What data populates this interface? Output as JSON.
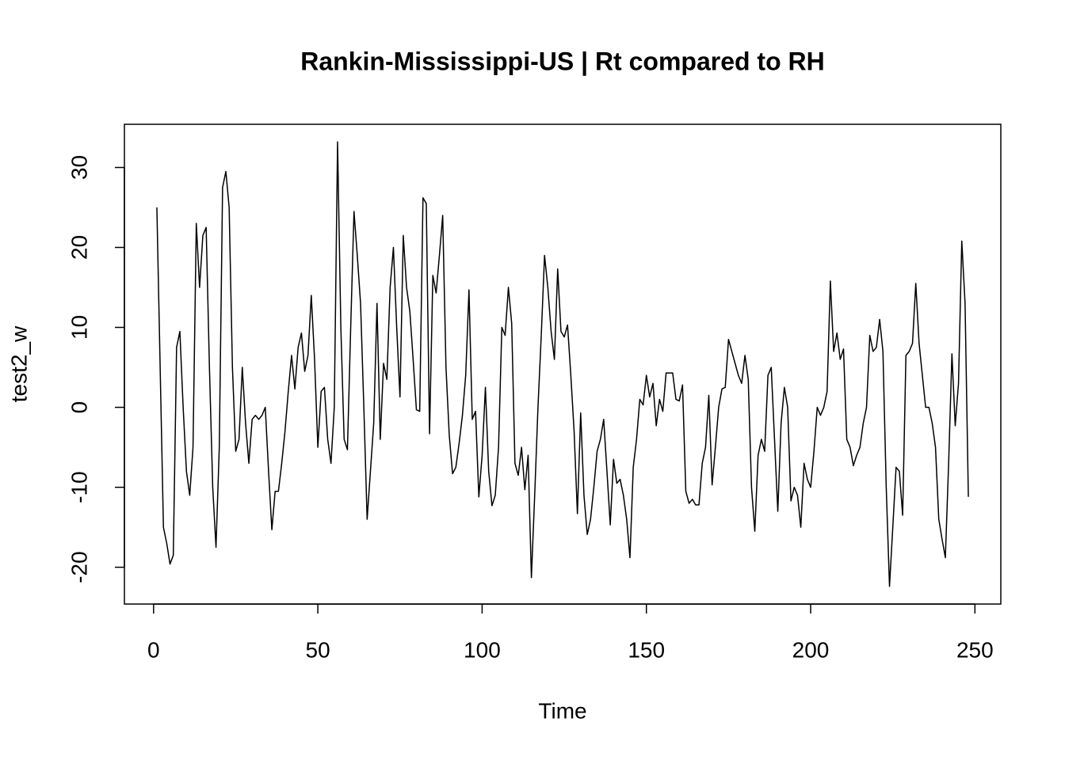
{
  "chart_data": {
    "type": "line",
    "title": "Rankin-Mississippi-US | Rt compared to RH",
    "x_label": "Time",
    "y_label": "test2_w",
    "color": "#000000",
    "x": [
      1,
      2,
      3,
      4,
      5,
      6,
      7,
      8,
      9,
      10,
      11,
      12,
      13,
      14,
      15,
      16,
      17,
      18,
      19,
      20,
      21,
      22,
      23,
      24,
      25,
      26,
      27,
      28,
      29,
      30,
      31,
      32,
      33,
      34,
      35,
      36,
      37,
      38,
      39,
      40,
      41,
      42,
      43,
      44,
      45,
      46,
      47,
      48,
      49,
      50,
      51,
      52,
      53,
      54,
      55,
      56,
      57,
      58,
      59,
      60,
      61,
      62,
      63,
      64,
      65,
      66,
      67,
      68,
      69,
      70,
      71,
      72,
      73,
      74,
      75,
      76,
      77,
      78,
      79,
      80,
      81,
      82,
      83,
      84,
      85,
      86,
      87,
      88,
      89,
      90,
      91,
      92,
      93,
      94,
      95,
      96,
      97,
      98,
      99,
      100,
      101,
      102,
      103,
      104,
      105,
      106,
      107,
      108,
      109,
      110,
      111,
      112,
      113,
      114,
      115,
      116,
      117,
      118,
      119,
      120,
      121,
      122,
      123,
      124,
      125,
      126,
      127,
      128,
      129,
      130,
      131,
      132,
      133,
      134,
      135,
      136,
      137,
      138,
      139,
      140,
      141,
      142,
      143,
      144,
      145,
      146,
      147,
      148,
      149,
      150,
      151,
      152,
      153,
      154,
      155,
      156,
      157,
      158,
      159,
      160,
      161,
      162,
      163,
      164,
      165,
      166,
      167,
      168,
      169,
      170,
      171,
      172,
      173,
      174,
      175,
      176,
      177,
      178,
      179,
      180,
      181,
      182,
      183,
      184,
      185,
      186,
      187,
      188,
      189,
      190,
      191,
      192,
      193,
      194,
      195,
      196,
      197,
      198,
      199,
      200,
      201,
      202,
      203,
      204,
      205,
      206,
      207,
      208,
      209,
      210,
      211,
      212,
      213,
      214,
      215,
      216,
      217,
      218,
      219,
      220,
      221,
      222,
      223,
      224,
      225,
      226,
      227,
      228,
      229,
      230,
      231,
      232,
      233,
      234,
      235,
      236,
      237,
      238,
      239,
      240,
      241,
      242,
      243,
      244,
      245,
      246,
      247,
      248
    ],
    "values": [
      25,
      5,
      -15,
      -17,
      -19.6,
      -18.5,
      7.5,
      9.5,
      0,
      -8,
      -11,
      -5,
      23,
      15,
      21.5,
      22.5,
      5,
      -10,
      -17.5,
      -5,
      27.5,
      29.5,
      25,
      5,
      -5.5,
      -4,
      5,
      -2,
      -7,
      -1.5,
      -1,
      -1.5,
      -1,
      0,
      -8,
      -15.3,
      -10.5,
      -10.5,
      -7,
      -3,
      2,
      6.5,
      2.3,
      7.5,
      9.3,
      4.5,
      6.5,
      14,
      6,
      -5,
      2,
      2.5,
      -4,
      -7,
      0,
      33.2,
      10,
      -4,
      -5.3,
      10,
      24.5,
      19,
      13,
      0,
      -14,
      -8,
      -2,
      13,
      -4,
      5.5,
      3.5,
      15,
      20,
      10,
      1.3,
      21.5,
      15,
      12,
      6,
      -0.3,
      -0.5,
      26.2,
      25.5,
      -3.3,
      16.5,
      14.3,
      19,
      24,
      5,
      -3.5,
      -8.3,
      -7.5,
      -4.5,
      -1,
      4,
      14.7,
      -1.5,
      -0.5,
      -11.2,
      -6,
      2.5,
      -8,
      -12.3,
      -11,
      -5,
      10,
      9,
      15,
      10.5,
      -7,
      -8.5,
      -5,
      -10.3,
      -6,
      -21.3,
      -11,
      0,
      9,
      19,
      15,
      9.5,
      6,
      17.3,
      9.5,
      8.8,
      10.3,
      4,
      -3,
      -13.3,
      -0.7,
      -11,
      -15.9,
      -14,
      -10,
      -5.5,
      -4,
      -1.5,
      -8,
      -14.7,
      -6.5,
      -9.5,
      -9,
      -11,
      -14,
      -18.8,
      -7.5,
      -4,
      1,
      0.3,
      4,
      1.3,
      3,
      -2.3,
      1,
      -0.5,
      4.3,
      4.3,
      4.3,
      1,
      0.8,
      2.8,
      -10.5,
      -12,
      -11.5,
      -12.2,
      -12.2,
      -7,
      -5,
      1.5,
      -9.7,
      -5,
      0,
      2.3,
      2.5,
      8.5,
      7,
      5.5,
      4,
      3,
      6.5,
      3.5,
      -10,
      -15.5,
      -6,
      -4,
      -5.5,
      4,
      5,
      -4,
      -13,
      -2,
      2.5,
      0,
      -11.7,
      -10,
      -11,
      -15,
      -7,
      -9,
      -10,
      -5.5,
      0,
      -1,
      0,
      2,
      15.8,
      7,
      9.3,
      6,
      7.3,
      -4,
      -5,
      -7.3,
      -6,
      -5,
      -2,
      0,
      9,
      7,
      7.5,
      11,
      7,
      -10,
      -22.4,
      -15,
      -7.5,
      -8,
      -13.5,
      6.5,
      7,
      8,
      15.5,
      8,
      4,
      0,
      0,
      -2,
      -5,
      -14,
      -16.5,
      -18.8,
      -7,
      6.7,
      -2.3,
      3,
      20.8,
      13,
      -11.2
    ],
    "xlim": [
      -8.88,
      257.88
    ],
    "xticks": [
      0,
      50,
      100,
      150,
      200,
      250
    ],
    "ylim": [
      -24.6,
      35.4
    ],
    "yticks": [
      -20,
      -10,
      0,
      10,
      20,
      30
    ],
    "grid": false
  }
}
